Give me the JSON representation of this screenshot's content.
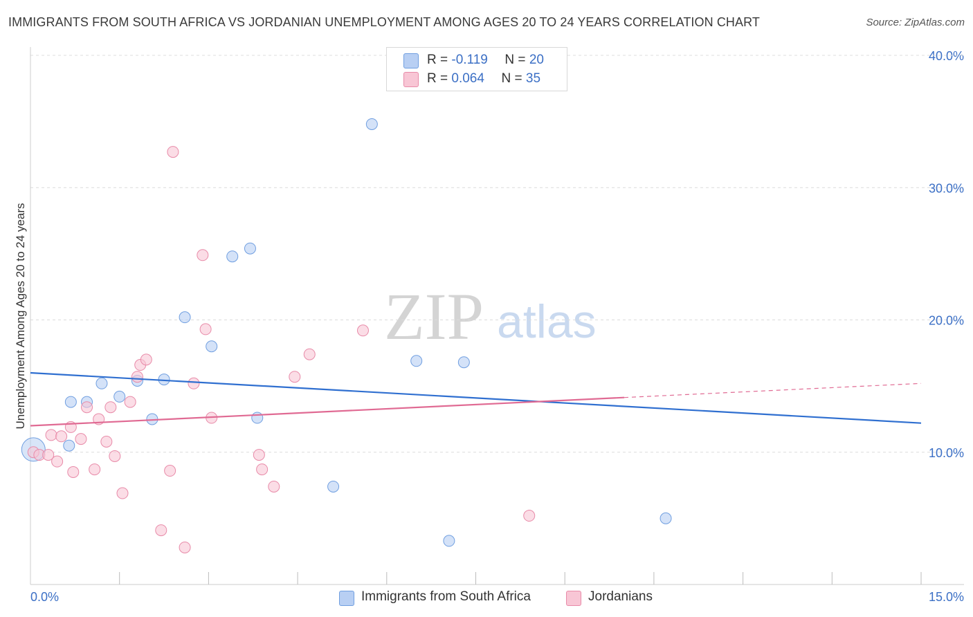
{
  "chart_data": {
    "type": "scatter",
    "title": "IMMIGRANTS FROM SOUTH AFRICA VS JORDANIAN UNEMPLOYMENT AMONG AGES 20 TO 24 YEARS CORRELATION CHART",
    "source": "Source: ZipAtlas.com",
    "xlabel": "",
    "ylabel": "Unemployment Among Ages 20 to 24 years",
    "xlim": [
      0,
      15
    ],
    "ylim": [
      0,
      40
    ],
    "x_tick_labels": [
      "0.0%",
      "15.0%"
    ],
    "y_ticks": [
      10,
      20,
      30,
      40
    ],
    "y_tick_labels": [
      "10.0%",
      "20.0%",
      "30.0%",
      "40.0%"
    ],
    "grid": true,
    "watermark": {
      "zip": "ZIP",
      "atlas": "atlas"
    },
    "legend_top": [
      {
        "r_label": "R =",
        "r_value": "-0.119",
        "n_label": "N =",
        "n_value": "20"
      },
      {
        "r_label": "R =",
        "r_value": "0.064",
        "n_label": "N =",
        "n_value": "35"
      }
    ],
    "series": [
      {
        "name": "Immigrants from South Africa",
        "color": "#6f9ee0",
        "fill": "#b8cff3",
        "trend": {
          "x0": 0,
          "y0": 16.0,
          "x1": 15,
          "y1": 12.2,
          "dashed_from": null
        },
        "points": [
          [
            0.05,
            10.2,
            "large"
          ],
          [
            0.65,
            10.5
          ],
          [
            0.68,
            13.8
          ],
          [
            0.95,
            13.8
          ],
          [
            1.2,
            15.2
          ],
          [
            1.5,
            14.2
          ],
          [
            1.8,
            15.4
          ],
          [
            2.05,
            12.5
          ],
          [
            2.25,
            15.5
          ],
          [
            2.6,
            20.2
          ],
          [
            3.05,
            18.0
          ],
          [
            3.4,
            24.8
          ],
          [
            3.7,
            25.4
          ],
          [
            3.82,
            12.6
          ],
          [
            5.1,
            7.4
          ],
          [
            5.75,
            34.8
          ],
          [
            6.5,
            16.9
          ],
          [
            7.05,
            3.3
          ],
          [
            7.3,
            16.8
          ],
          [
            10.7,
            5.0
          ]
        ]
      },
      {
        "name": "Jordanians",
        "color": "#e88aa8",
        "fill": "#f8c6d5",
        "trend": {
          "x0": 0,
          "y0": 12.0,
          "x1": 15,
          "y1": 15.2,
          "dashed_from": 10
        },
        "points": [
          [
            0.05,
            10.0
          ],
          [
            0.15,
            9.8
          ],
          [
            0.3,
            9.8
          ],
          [
            0.35,
            11.3
          ],
          [
            0.45,
            9.3
          ],
          [
            0.52,
            11.2
          ],
          [
            0.68,
            11.9
          ],
          [
            0.72,
            8.5
          ],
          [
            0.85,
            11.0
          ],
          [
            0.95,
            13.4
          ],
          [
            1.08,
            8.7
          ],
          [
            1.15,
            12.5
          ],
          [
            1.28,
            10.8
          ],
          [
            1.35,
            13.4
          ],
          [
            1.42,
            9.7
          ],
          [
            1.55,
            6.9
          ],
          [
            1.68,
            13.8
          ],
          [
            1.8,
            15.7
          ],
          [
            1.85,
            16.6
          ],
          [
            1.95,
            17.0
          ],
          [
            2.2,
            4.1
          ],
          [
            2.35,
            8.6
          ],
          [
            2.4,
            32.7
          ],
          [
            2.6,
            2.8
          ],
          [
            2.75,
            15.2
          ],
          [
            2.9,
            24.9
          ],
          [
            2.95,
            19.3
          ],
          [
            3.05,
            12.6
          ],
          [
            3.85,
            9.8
          ],
          [
            3.9,
            8.7
          ],
          [
            4.1,
            7.4
          ],
          [
            4.45,
            15.7
          ],
          [
            4.7,
            17.4
          ],
          [
            5.6,
            19.2
          ],
          [
            8.4,
            5.2
          ]
        ]
      }
    ]
  }
}
